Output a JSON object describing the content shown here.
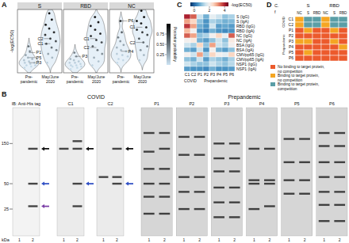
{
  "chart_data": [
    {
      "type": "violin",
      "title": "A",
      "ylabel": "-log(EC50)",
      "tick_labels": false,
      "ylim": [
        0,
        5
      ],
      "categories": [
        "Pre-pandemic",
        "May/June 2020"
      ],
      "facets": [
        {
          "name": "S",
          "groups": [
            {
              "values": [
                0.4,
                0.5,
                0.6,
                0.6,
                0.7,
                0.8,
                0.8,
                0.9,
                1.0,
                1.1,
                1.2,
                1.4,
                1.7,
                2.1
              ],
              "probability": [
                0.05,
                0.05,
                0.06,
                0.07,
                0.08,
                0.1,
                0.1,
                0.12,
                0.15,
                0.18,
                0.22,
                0.3,
                0.4,
                0.55
              ]
            },
            {
              "values": [
                0.8,
                1.2,
                1.5,
                1.8,
                2.0,
                2.3,
                2.5,
                2.7,
                3.0,
                3.2,
                3.5,
                3.8,
                4.2,
                4.7
              ],
              "probability": [
                0.1,
                0.2,
                0.3,
                0.45,
                0.55,
                0.65,
                0.7,
                0.75,
                0.82,
                0.86,
                0.9,
                0.93,
                0.96,
                0.98
              ]
            }
          ],
          "annotations": [
            {
              "text": "C2",
              "category": "May/June 2020",
              "value": 2.7
            },
            {
              "text": "C1",
              "category": "May/June 2020",
              "value": 2.3
            },
            {
              "text": "P1",
              "category": "Pre-pandemic",
              "value": 1.6
            },
            {
              "text": "P5",
              "category": "Pre-pandemic",
              "value": 1.2
            },
            {
              "text": "P3",
              "category": "Pre-pandemic",
              "value": 0.8
            }
          ]
        },
        {
          "name": "RBD",
          "groups": [
            {
              "values": [
                0.3,
                0.4,
                0.5,
                0.5,
                0.6,
                0.6,
                0.7,
                0.8,
                0.8,
                0.9,
                1.0,
                1.1,
                1.3,
                1.6
              ],
              "probability": [
                0.04,
                0.05,
                0.05,
                0.06,
                0.06,
                0.07,
                0.08,
                0.1,
                0.1,
                0.12,
                0.15,
                0.2,
                0.3,
                0.45
              ]
            },
            {
              "values": [
                0.6,
                0.9,
                1.2,
                1.5,
                1.8,
                2.1,
                2.4,
                2.6,
                2.9,
                3.1,
                3.4,
                3.7,
                4.0,
                4.4
              ],
              "probability": [
                0.08,
                0.15,
                0.25,
                0.4,
                0.5,
                0.6,
                0.68,
                0.74,
                0.8,
                0.85,
                0.89,
                0.92,
                0.95,
                0.97
              ]
            }
          ],
          "annotations": [
            {
              "text": "C1",
              "category": "May/June 2020",
              "value": 2.7
            },
            {
              "text": "C2",
              "category": "May/June 2020",
              "value": 2.0
            },
            {
              "text": "P3",
              "category": "Pre-pandemic",
              "value": 1.3
            }
          ]
        },
        {
          "name": "NC",
          "groups": [
            {
              "values": [
                0.8,
                1.0,
                1.1,
                1.3,
                1.4,
                1.5,
                1.7,
                1.8,
                2.0,
                2.2,
                2.5,
                2.8,
                3.2,
                4.1
              ],
              "probability": [
                0.05,
                0.06,
                0.07,
                0.08,
                0.1,
                0.12,
                0.15,
                0.18,
                0.22,
                0.28,
                0.35,
                0.45,
                0.6,
                0.85
              ]
            },
            {
              "values": [
                1.0,
                1.4,
                1.8,
                2.1,
                2.4,
                2.7,
                3.0,
                3.2,
                3.4,
                3.6,
                3.9,
                4.1,
                4.4,
                4.9
              ],
              "probability": [
                0.1,
                0.2,
                0.35,
                0.45,
                0.55,
                0.65,
                0.72,
                0.78,
                0.82,
                0.86,
                0.9,
                0.93,
                0.96,
                0.99
              ]
            }
          ],
          "annotations": [
            {
              "text": "P6",
              "category": "Pre-pandemic",
              "value": 4.1
            },
            {
              "text": "C1",
              "category": "May/June 2020",
              "value": 3.6
            },
            {
              "text": "C2",
              "category": "May/June 2020",
              "value": 2.4
            },
            {
              "text": "P4",
              "category": "Pre-pandemic",
              "value": 1.7
            }
          ]
        }
      ],
      "colorbar": {
        "title": "Posterior probability",
        "range": [
          0,
          1
        ],
        "ticks": [
          0.25,
          {
            "value": 0.5,
            "label": "0.50"
          },
          0.75
        ]
      }
    },
    {
      "type": "blot",
      "title": "B",
      "ylabel": "kDa",
      "log": "y",
      "ylim": [
        400,
        12
      ],
      "yticks": [
        150,
        50,
        25
      ],
      "lanes": [
        "1",
        "2"
      ],
      "sections": [
        {
          "blots": [
            {
              "label": "IB: Anti-His tag",
              "bands": [
                [],
                [
                  130,
                  50,
                  27
                ]
              ],
              "arrows": [
                {
                  "kda": 130,
                  "color": "#111111"
                },
                {
                  "kda": 50,
                  "color": "#2f4fc4"
                },
                {
                  "kda": 27,
                  "color": "#7b3fa6"
                }
              ]
            }
          ]
        },
        {
          "title": "COVID",
          "blots": [
            {
              "label": "C1",
              "bands": [
                [
                  130
                ],
                [
                  160,
                  130,
                  50,
                  27
                ]
              ],
              "arrows": [
                {
                  "kda": 130,
                  "color": "#111111"
                },
                {
                  "kda": 50,
                  "color": "#2f4fc4"
                }
              ]
            },
            {
              "label": "C2",
              "bands": [
                [
                  60
                ],
                [
                  130,
                  60,
                  50
                ]
              ],
              "arrows": [
                {
                  "kda": 130,
                  "color": "#111111"
                },
                {
                  "kda": 50,
                  "color": "#2f4fc4"
                }
              ]
            }
          ]
        },
        {
          "title": "Prepandemic",
          "blots": [
            {
              "label": "P1",
              "bands": [
                [
                  200,
                  120,
                  75,
                  50,
                  35,
                  22
                ],
                [
                  200,
                  130,
                  75,
                  50,
                  35,
                  22
                ]
              ]
            },
            {
              "label": "P2",
              "bands": [
                [
                  180,
                  110,
                  60,
                  40,
                  25
                ],
                [
                  180,
                  110,
                  60,
                  40,
                  25
                ]
              ]
            },
            {
              "label": "P3",
              "bands": [
                [
                  150,
                  100,
                  70,
                  45,
                  30,
                  20
                ],
                [
                  150,
                  100,
                  70,
                  45,
                  30,
                  20
                ]
              ]
            },
            {
              "label": "P4",
              "bands": [
                [
                  130,
                  55,
                  50,
                  25
                ],
                [
                  130,
                  55,
                  50,
                  27
                ]
              ]
            },
            {
              "label": "P5",
              "bands": [
                [
                  170,
                  90,
                  55,
                  38
                ],
                [
                  170,
                  90,
                  55,
                  38
                ]
              ]
            },
            {
              "label": "P6",
              "bands": [
                [
                  200,
                  140,
                  90,
                  60,
                  40,
                  28,
                  18
                ],
                [
                  200,
                  140,
                  90,
                  60,
                  40,
                  28,
                  18
                ]
              ]
            }
          ]
        }
      ]
    },
    {
      "type": "heatmap",
      "title": "C",
      "x": [
        "C1",
        "C2",
        "P1",
        "P2",
        "P3",
        "P4",
        "P5",
        "P6"
      ],
      "y": [
        "S (IgG)",
        "S (IgA)",
        "RBD (IgG)",
        "RBD (IgA)",
        "NC (IgG)",
        "NC (IgA)",
        "BSA (IgG)",
        "BSA (IgA)",
        "CMVpp65 (IgG)",
        "CMVpp65 (IgA)",
        "NSP1 (IgG)",
        "NSP1 (IgA)"
      ],
      "values": [
        [
          4.0,
          3.5,
          1.5,
          0.8,
          1.8,
          1.5,
          1.0,
          1.2
        ],
        [
          3.0,
          2.5,
          1.0,
          0.5,
          1.2,
          1.0,
          0.8,
          0.9
        ],
        [
          3.8,
          3.0,
          0.8,
          0.5,
          1.5,
          0.6,
          0.7,
          0.6
        ],
        [
          2.8,
          2.0,
          0.5,
          0.3,
          0.8,
          0.5,
          0.4,
          0.5
        ],
        [
          3.5,
          3.0,
          1.0,
          1.2,
          2.0,
          2.5,
          1.8,
          3.5
        ],
        [
          2.0,
          2.2,
          0.8,
          0.6,
          1.0,
          1.5,
          1.0,
          2.2
        ],
        [
          1.5,
          1.2,
          2.5,
          1.0,
          3.0,
          1.5,
          1.2,
          2.0
        ],
        [
          0.8,
          0.6,
          1.5,
          0.5,
          2.0,
          0.8,
          0.6,
          1.0
        ],
        [
          2.0,
          1.5,
          3.0,
          1.2,
          2.5,
          2.0,
          1.8,
          2.5
        ],
        [
          1.0,
          0.8,
          1.5,
          0.6,
          1.2,
          1.0,
          0.8,
          1.2
        ],
        [
          1.5,
          1.2,
          1.0,
          1.0,
          1.5,
          1.2,
          1.0,
          1.3
        ],
        [
          0.6,
          0.5,
          0.5,
          0.4,
          0.8,
          0.5,
          0.5,
          0.6
        ]
      ],
      "column_groups": [
        {
          "label": "COVID",
          "span": 2
        },
        {
          "label": "Prepandemic",
          "span": 6
        }
      ],
      "colorbar": {
        "title": "-log(EC50)",
        "range": [
          -0.5,
          4.5
        ],
        "ticks": [
          0,
          2,
          4
        ]
      }
    },
    {
      "type": "grid",
      "title": "D",
      "header": [
        "C.",
        "f"
      ],
      "column_groups": [
        {
          "label": "S",
          "columns": [
            "NC",
            "S",
            "RBD"
          ]
        },
        {
          "label": "RBD",
          "columns": [
            "NC",
            "S",
            "RBD"
          ]
        }
      ],
      "rows": [
        "C1",
        "C2",
        "P1",
        "P2",
        "P3",
        "P4",
        "P5",
        "P6"
      ],
      "row_groups": [
        {
          "label": "COVID",
          "span": 2
        },
        {
          "label": "Prepandemic",
          "span": 6
        }
      ],
      "cells": [
        [
          1,
          2,
          2,
          1,
          2,
          2
        ],
        [
          1,
          2,
          2,
          1,
          2,
          2
        ],
        [
          0,
          1,
          0,
          0,
          1,
          0
        ],
        [
          0,
          0,
          0,
          0,
          0,
          0
        ],
        [
          1,
          1,
          0,
          0,
          1,
          0
        ],
        [
          0,
          0,
          0,
          0,
          0,
          1
        ],
        [
          0,
          1,
          0,
          0,
          0,
          0
        ],
        [
          0,
          0,
          0,
          0,
          0,
          0
        ]
      ],
      "classes": [
        {
          "label": "No binding to target protein, no competition",
          "color": "#ec5a2c"
        },
        {
          "label": "Binding to target protein, no competition",
          "color": "#f5a623"
        },
        {
          "label": "Binding to target protein, competition",
          "color": "#5b9ea6"
        }
      ]
    }
  ]
}
